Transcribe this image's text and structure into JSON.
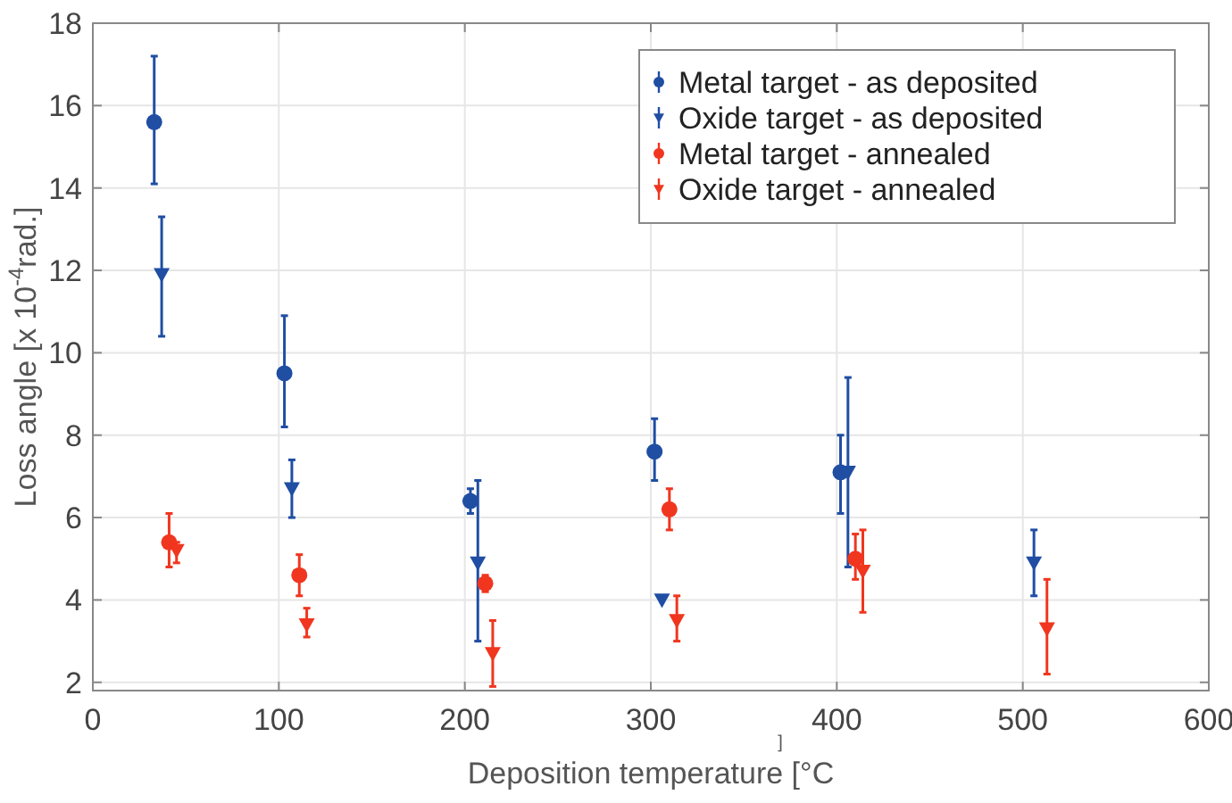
{
  "chart_data": {
    "type": "scatter",
    "xlabel": "Deposition temperature [°C",
    "ylabel": "Loss angle [x 10$^{-4}$rad.]",
    "annotations": [
      "]"
    ],
    "xlim": [
      0,
      600
    ],
    "xticks": [
      0,
      100,
      200,
      300,
      400,
      500,
      600
    ],
    "ylim": [
      1.8,
      18
    ],
    "yticks": [
      2,
      4,
      6,
      8,
      10,
      12,
      14,
      16,
      18
    ],
    "grid": true,
    "legend": "top right",
    "series": [
      {
        "name": "Metal target - as deposited",
        "color": "#1f4ea3",
        "marker": "circle",
        "x": [
          33,
          103,
          203,
          302,
          402
        ],
        "values": [
          15.6,
          9.5,
          6.4,
          7.6,
          7.1
        ],
        "errors": [
          [
            14.1,
            17.2
          ],
          [
            8.2,
            10.9
          ],
          [
            6.1,
            6.7
          ],
          [
            6.9,
            8.4
          ],
          [
            6.1,
            8.0
          ]
        ]
      },
      {
        "name": "Oxide target - as deposited",
        "color": "#1f4ea3",
        "marker": "triangle",
        "x": [
          37,
          107,
          207,
          306,
          406,
          506
        ],
        "values": [
          11.9,
          6.7,
          4.9,
          4.0,
          7.1,
          4.9
        ],
        "errors": [
          [
            10.4,
            13.3
          ],
          [
            6.0,
            7.4
          ],
          [
            3.0,
            6.9
          ],
          null,
          [
            4.8,
            9.4
          ],
          [
            4.1,
            5.7
          ]
        ]
      },
      {
        "name": "Metal target - annealed",
        "color": "#f0361f",
        "marker": "circle",
        "x": [
          41,
          111,
          211,
          310,
          410
        ],
        "values": [
          5.4,
          4.6,
          4.4,
          6.2,
          5.0
        ],
        "errors": [
          [
            4.8,
            6.1
          ],
          [
            4.1,
            5.1
          ],
          [
            4.2,
            4.6
          ],
          [
            5.7,
            6.7
          ],
          [
            4.5,
            5.6
          ]
        ]
      },
      {
        "name": "Oxide target - annealed",
        "color": "#f0361f",
        "marker": "triangle",
        "x": [
          45,
          115,
          215,
          314,
          414,
          513
        ],
        "values": [
          5.2,
          3.4,
          2.7,
          3.5,
          4.7,
          3.3
        ],
        "errors": [
          [
            4.9,
            5.4
          ],
          [
            3.1,
            3.8
          ],
          [
            1.9,
            3.5
          ],
          [
            3.0,
            4.1
          ],
          [
            3.7,
            5.7
          ],
          [
            2.2,
            4.5
          ]
        ]
      }
    ]
  }
}
